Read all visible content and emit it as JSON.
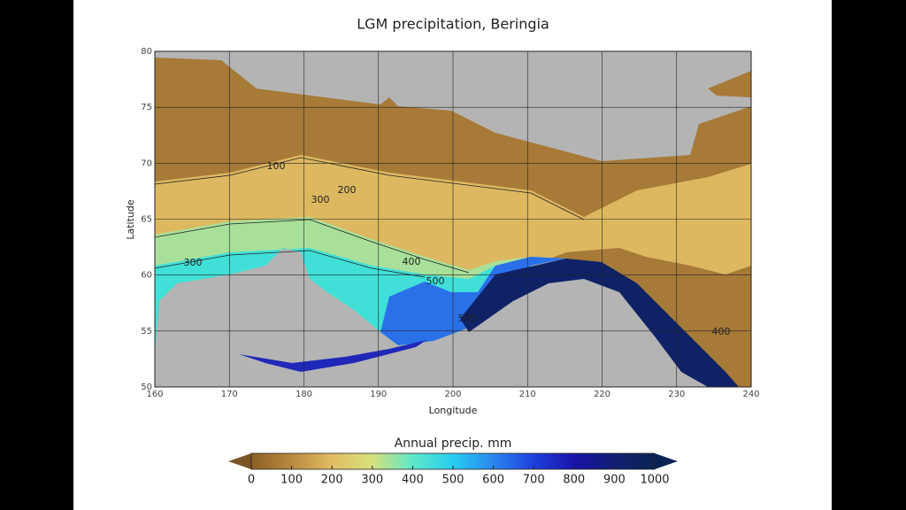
{
  "chart_data": {
    "type": "map",
    "title": "LGM precipitation, Beringia",
    "xlabel": "Longitude",
    "ylabel": "Latitude",
    "xlim": [
      160,
      240
    ],
    "xticks": [
      160,
      170,
      180,
      190,
      200,
      210,
      220,
      230,
      240
    ],
    "ylim": [
      50,
      80
    ],
    "yticks": [
      50,
      55,
      60,
      65,
      70,
      75,
      80
    ],
    "grid": true,
    "contour_labels": [
      100,
      200,
      300,
      300,
      400,
      500,
      500,
      400
    ],
    "colorbar": {
      "label": "Annual precip. mm",
      "lim": [
        0,
        1000
      ],
      "ticks": [
        0,
        100,
        200,
        300,
        400,
        500,
        600,
        700,
        800,
        900,
        1000
      ],
      "colors": [
        "#8a5f22",
        "#b88a40",
        "#e2bd62",
        "#d6e07c",
        "#5ee8c8",
        "#28cdf0",
        "#2a86ef",
        "#1f3fdc",
        "#1a14a8",
        "#101f72",
        "#0b2352"
      ],
      "under_color": "#7a5425",
      "over_color": "#0b2352"
    }
  }
}
